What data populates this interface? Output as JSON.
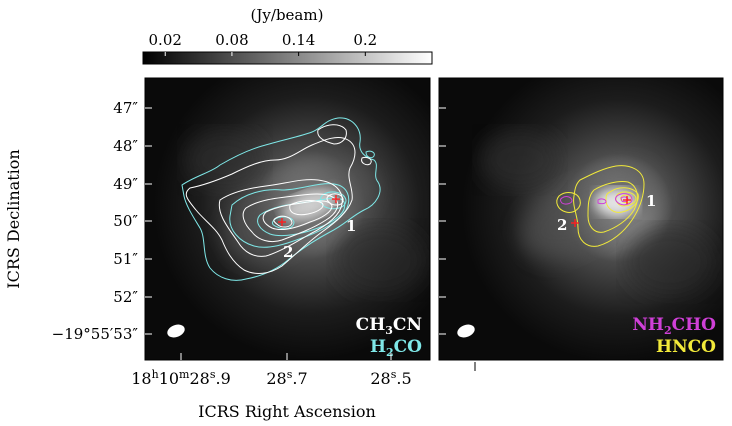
{
  "colorbar": {
    "unit": "(Jy/beam)",
    "ticks": [
      "0.02",
      "0.08",
      "0.14",
      "0.2"
    ],
    "tick_values": [
      0.02,
      0.08,
      0.14,
      0.2
    ],
    "range": [
      0.0,
      0.26
    ]
  },
  "axes": {
    "ylabel": "ICRS Declination",
    "xlabel": "ICRS Right Ascension",
    "dec_ticks": [
      "47″",
      "48″",
      "49″",
      "50″",
      "51″",
      "52″",
      "−19°55′53″"
    ],
    "ra_ticks": {
      "first": {
        "h": "18",
        "hsup": "h",
        "m": "10",
        "msup": "m",
        "s": "28",
        "ssup": "s",
        "frac": ".9"
      },
      "second": {
        "s": "28",
        "ssup": "s",
        "frac": ".7"
      },
      "third": {
        "s": "28",
        "ssup": "s",
        "frac": ".5"
      }
    }
  },
  "left_panel": {
    "legend": [
      {
        "text": "CH",
        "sub": "3",
        "tail": "CN",
        "color": "#ffffff"
      },
      {
        "text": "H",
        "sub": "2",
        "tail": "CO",
        "color": "#7fe8e8"
      }
    ],
    "source_labels": [
      "1",
      "2"
    ]
  },
  "right_panel": {
    "legend": [
      {
        "text": "NH",
        "sub": "2",
        "tail": "CHO",
        "color": "#d040d8"
      },
      {
        "text": "HNCO",
        "sub": "",
        "tail": "",
        "color": "#f2ea3a"
      }
    ],
    "source_labels": [
      "1",
      "2"
    ]
  },
  "colors": {
    "cyan": "#7fe8e8",
    "white": "#ffffff",
    "magenta": "#d040d8",
    "yellow": "#f2ea3a",
    "red": "#ff2020"
  }
}
